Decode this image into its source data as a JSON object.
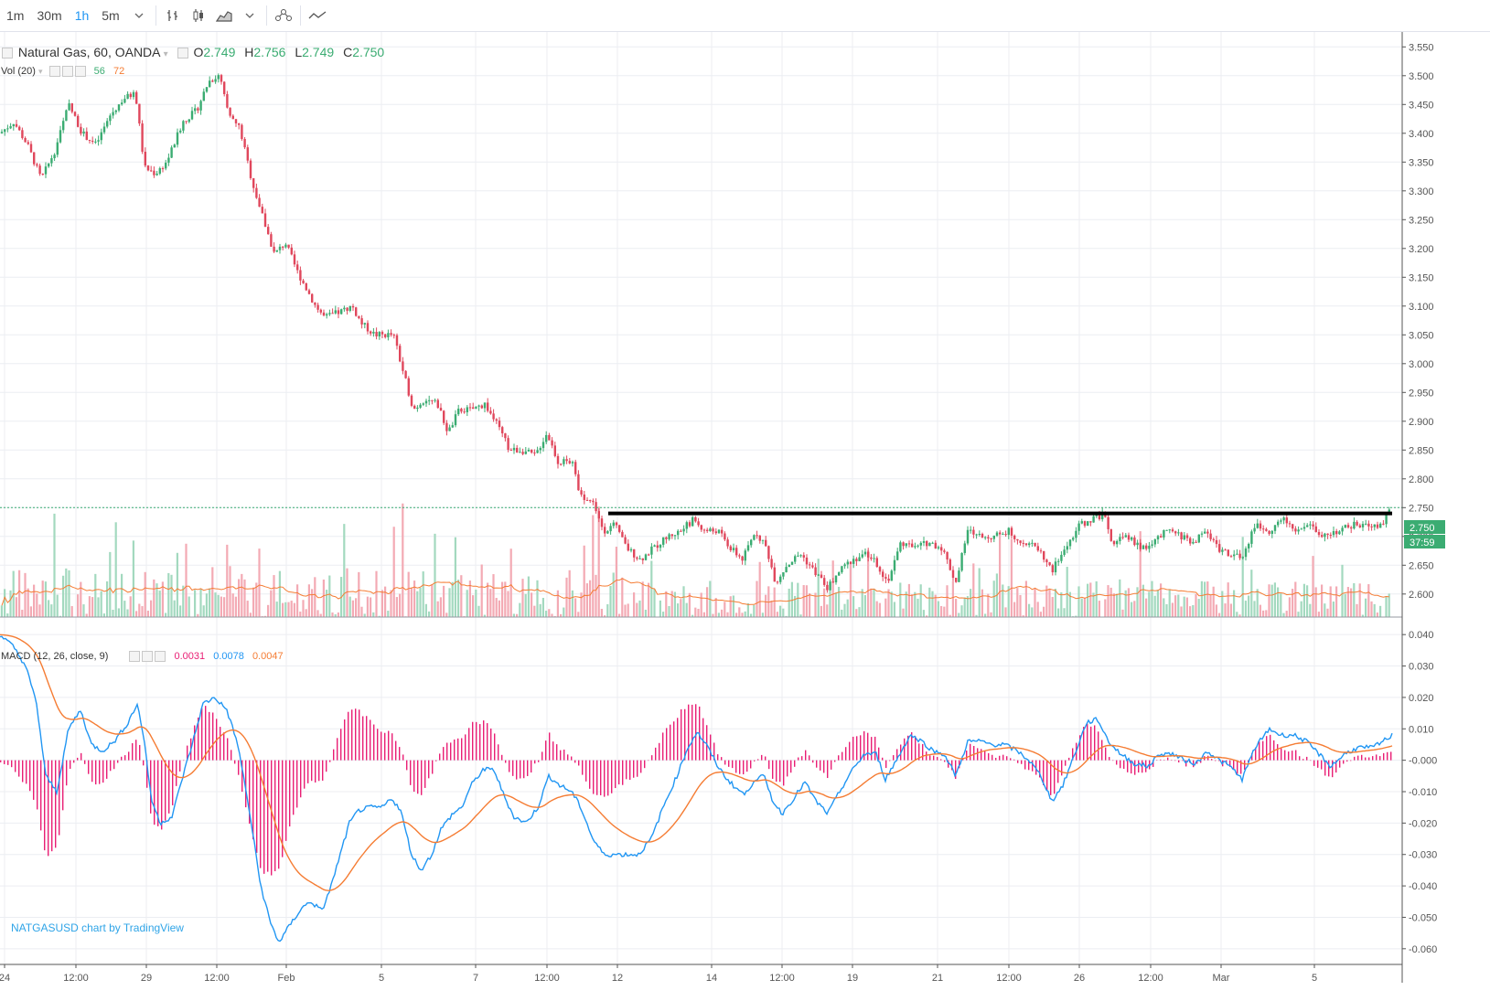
{
  "toolbar": {
    "intervals": [
      "1m",
      "30m",
      "1h",
      "5m"
    ],
    "active_interval": "1h",
    "icons": [
      "chevron-down-icon",
      "bar-chart-icon",
      "candlestick-icon",
      "area-chart-icon",
      "chevron-down-icon",
      "indicators-icon",
      "compare-line-icon"
    ]
  },
  "legend": {
    "symbol": "Natural Gas, 60, OANDA",
    "o_label": "O",
    "o_value": "2.749",
    "h_label": "H",
    "h_value": "2.756",
    "l_label": "L",
    "l_value": "2.749",
    "c_label": "C",
    "c_value": "2.750",
    "vol_label": "Vol (20)",
    "vol_value1": "56",
    "vol_value2": "72",
    "macd_label": "MACD (12, 26, close, 9)",
    "macd_hist": "0.0031",
    "macd_line": "0.0078",
    "macd_signal": "0.0047"
  },
  "price_axis": {
    "ticks": [
      "3.550",
      "3.500",
      "3.450",
      "3.400",
      "3.350",
      "3.300",
      "3.250",
      "3.200",
      "3.150",
      "3.100",
      "3.050",
      "3.000",
      "2.950",
      "2.900",
      "2.850",
      "2.800",
      "2.750",
      "2.700",
      "2.650",
      "2.600"
    ],
    "last_price": "2.750",
    "countdown": "37:59"
  },
  "macd_axis": {
    "ticks": [
      "0.040",
      "0.030",
      "0.020",
      "0.010",
      "-0.000",
      "-0.010",
      "-0.020",
      "-0.030",
      "-0.040",
      "-0.050",
      "-0.060"
    ]
  },
  "time_axis": {
    "ticks": [
      "24",
      "12:00",
      "29",
      "12:00",
      "Feb",
      "5",
      "7",
      "12:00",
      "12",
      "14",
      "12:00",
      "19",
      "21",
      "12:00",
      "26",
      "12:00",
      "Mar",
      "5"
    ]
  },
  "watermark": "NATGASUSD chart by TradingView",
  "colors": {
    "up": "#3bac72",
    "down": "#e0475c",
    "vol_up": "#a3d9bf",
    "vol_down": "#f3aab4",
    "vol_ma": "#f57c33",
    "macd_line": "#2196f3",
    "signal_line": "#f57c33",
    "hist": "#e91e74",
    "resistance": "#000000",
    "accent": "#2196f3"
  },
  "chart_data": {
    "type": "candlestick",
    "symbol": "Natural Gas, 60, OANDA",
    "ylim": [
      2.56,
      3.56
    ],
    "resistance_level": 2.74,
    "last_close": 2.75,
    "path": [
      [
        0,
        3.4
      ],
      [
        15,
        3.42
      ],
      [
        30,
        3.38
      ],
      [
        45,
        3.32
      ],
      [
        60,
        3.37
      ],
      [
        75,
        3.45
      ],
      [
        90,
        3.4
      ],
      [
        105,
        3.38
      ],
      [
        120,
        3.43
      ],
      [
        135,
        3.46
      ],
      [
        148,
        3.47
      ],
      [
        158,
        3.34
      ],
      [
        170,
        3.33
      ],
      [
        182,
        3.35
      ],
      [
        190,
        3.38
      ],
      [
        200,
        3.42
      ],
      [
        215,
        3.44
      ],
      [
        228,
        3.49
      ],
      [
        240,
        3.5
      ],
      [
        250,
        3.43
      ],
      [
        262,
        3.41
      ],
      [
        275,
        3.32
      ],
      [
        288,
        3.25
      ],
      [
        300,
        3.19
      ],
      [
        312,
        3.21
      ],
      [
        325,
        3.16
      ],
      [
        335,
        3.13
      ],
      [
        345,
        3.1
      ],
      [
        355,
        3.08
      ],
      [
        372,
        3.09
      ],
      [
        385,
        3.1
      ],
      [
        395,
        3.07
      ],
      [
        410,
        3.05
      ],
      [
        430,
        3.05
      ],
      [
        440,
        2.99
      ],
      [
        452,
        2.92
      ],
      [
        465,
        2.94
      ],
      [
        478,
        2.93
      ],
      [
        490,
        2.88
      ],
      [
        502,
        2.92
      ],
      [
        515,
        2.92
      ],
      [
        530,
        2.93
      ],
      [
        545,
        2.89
      ],
      [
        557,
        2.85
      ],
      [
        570,
        2.85
      ],
      [
        585,
        2.84
      ],
      [
        598,
        2.88
      ],
      [
        610,
        2.83
      ],
      [
        625,
        2.83
      ],
      [
        635,
        2.77
      ],
      [
        648,
        2.76
      ],
      [
        660,
        2.71
      ],
      [
        672,
        2.72
      ],
      [
        685,
        2.68
      ],
      [
        700,
        2.66
      ],
      [
        715,
        2.68
      ],
      [
        730,
        2.7
      ],
      [
        745,
        2.71
      ],
      [
        758,
        2.73
      ],
      [
        770,
        2.71
      ],
      [
        785,
        2.71
      ],
      [
        798,
        2.68
      ],
      [
        812,
        2.66
      ],
      [
        826,
        2.71
      ],
      [
        838,
        2.68
      ],
      [
        848,
        2.62
      ],
      [
        860,
        2.65
      ],
      [
        875,
        2.67
      ],
      [
        890,
        2.64
      ],
      [
        905,
        2.61
      ],
      [
        918,
        2.64
      ],
      [
        932,
        2.66
      ],
      [
        948,
        2.67
      ],
      [
        960,
        2.65
      ],
      [
        970,
        2.62
      ],
      [
        985,
        2.69
      ],
      [
        1000,
        2.68
      ],
      [
        1015,
        2.69
      ],
      [
        1030,
        2.68
      ],
      [
        1045,
        2.62
      ],
      [
        1058,
        2.71
      ],
      [
        1072,
        2.7
      ],
      [
        1088,
        2.7
      ],
      [
        1102,
        2.71
      ],
      [
        1118,
        2.69
      ],
      [
        1135,
        2.68
      ],
      [
        1150,
        2.64
      ],
      [
        1165,
        2.68
      ],
      [
        1180,
        2.72
      ],
      [
        1195,
        2.73
      ],
      [
        1208,
        2.74
      ],
      [
        1215,
        2.69
      ],
      [
        1232,
        2.7
      ],
      [
        1248,
        2.68
      ],
      [
        1262,
        2.69
      ],
      [
        1276,
        2.71
      ],
      [
        1292,
        2.7
      ],
      [
        1305,
        2.69
      ],
      [
        1318,
        2.71
      ],
      [
        1332,
        2.68
      ],
      [
        1345,
        2.67
      ],
      [
        1358,
        2.66
      ],
      [
        1372,
        2.72
      ],
      [
        1388,
        2.71
      ],
      [
        1402,
        2.73
      ],
      [
        1418,
        2.71
      ],
      [
        1432,
        2.72
      ],
      [
        1448,
        2.7
      ],
      [
        1462,
        2.71
      ],
      [
        1478,
        2.72
      ],
      [
        1495,
        2.72
      ],
      [
        1510,
        2.72
      ],
      [
        1522,
        2.75
      ]
    ],
    "macd_path": [
      [
        0,
        0.04
      ],
      [
        15,
        0.036
      ],
      [
        28,
        0.03
      ],
      [
        40,
        0.018
      ],
      [
        50,
        -0.005
      ],
      [
        62,
        -0.01
      ],
      [
        75,
        0.01
      ],
      [
        88,
        0.016
      ],
      [
        100,
        0.005
      ],
      [
        112,
        0.003
      ],
      [
        125,
        0.006
      ],
      [
        140,
        0.012
      ],
      [
        150,
        0.018
      ],
      [
        158,
        0.006
      ],
      [
        165,
        -0.012
      ],
      [
        175,
        -0.02
      ],
      [
        188,
        -0.018
      ],
      [
        200,
        -0.005
      ],
      [
        210,
        0.005
      ],
      [
        222,
        0.018
      ],
      [
        235,
        0.02
      ],
      [
        248,
        0.016
      ],
      [
        260,
        0.005
      ],
      [
        272,
        -0.015
      ],
      [
        285,
        -0.04
      ],
      [
        296,
        -0.052
      ],
      [
        305,
        -0.058
      ],
      [
        318,
        -0.052
      ],
      [
        330,
        -0.047
      ],
      [
        340,
        -0.045
      ],
      [
        352,
        -0.048
      ],
      [
        362,
        -0.04
      ],
      [
        372,
        -0.03
      ],
      [
        382,
        -0.02
      ],
      [
        392,
        -0.016
      ],
      [
        405,
        -0.015
      ],
      [
        418,
        -0.015
      ],
      [
        428,
        -0.012
      ],
      [
        438,
        -0.016
      ],
      [
        450,
        -0.03
      ],
      [
        460,
        -0.035
      ],
      [
        472,
        -0.03
      ],
      [
        482,
        -0.022
      ],
      [
        495,
        -0.017
      ],
      [
        505,
        -0.015
      ],
      [
        515,
        -0.008
      ],
      [
        528,
        -0.003
      ],
      [
        540,
        -0.003
      ],
      [
        552,
        -0.012
      ],
      [
        562,
        -0.018
      ],
      [
        575,
        -0.02
      ],
      [
        588,
        -0.015
      ],
      [
        600,
        -0.005
      ],
      [
        612,
        -0.008
      ],
      [
        625,
        -0.01
      ],
      [
        635,
        -0.015
      ],
      [
        648,
        -0.025
      ],
      [
        660,
        -0.03
      ],
      [
        672,
        -0.03
      ],
      [
        685,
        -0.03
      ],
      [
        698,
        -0.03
      ],
      [
        712,
        -0.025
      ],
      [
        725,
        -0.015
      ],
      [
        740,
        -0.005
      ],
      [
        752,
        0.004
      ],
      [
        762,
        0.009
      ],
      [
        772,
        0.005
      ],
      [
        785,
        -0.002
      ],
      [
        795,
        -0.006
      ],
      [
        805,
        -0.009
      ],
      [
        815,
        -0.011
      ],
      [
        825,
        -0.006
      ],
      [
        835,
        -0.005
      ],
      [
        845,
        -0.013
      ],
      [
        855,
        -0.017
      ],
      [
        868,
        -0.012
      ],
      [
        880,
        -0.007
      ],
      [
        892,
        -0.013
      ],
      [
        905,
        -0.017
      ],
      [
        918,
        -0.01
      ],
      [
        930,
        -0.004
      ],
      [
        945,
        0.002
      ],
      [
        958,
        0.002
      ],
      [
        968,
        -0.006
      ],
      [
        980,
        0.0
      ],
      [
        995,
        0.008
      ],
      [
        1008,
        0.006
      ],
      [
        1020,
        0.003
      ],
      [
        1032,
        0.002
      ],
      [
        1045,
        -0.005
      ],
      [
        1058,
        0.006
      ],
      [
        1072,
        0.006
      ],
      [
        1085,
        0.005
      ],
      [
        1098,
        0.005
      ],
      [
        1112,
        0.003
      ],
      [
        1125,
        0.0
      ],
      [
        1138,
        -0.005
      ],
      [
        1150,
        -0.013
      ],
      [
        1162,
        -0.008
      ],
      [
        1175,
        0.002
      ],
      [
        1188,
        0.012
      ],
      [
        1200,
        0.013
      ],
      [
        1212,
        0.006
      ],
      [
        1225,
        0.002
      ],
      [
        1240,
        -0.001
      ],
      [
        1255,
        -0.002
      ],
      [
        1268,
        0.002
      ],
      [
        1282,
        0.002
      ],
      [
        1295,
        0.0
      ],
      [
        1308,
        -0.001
      ],
      [
        1320,
        0.003
      ],
      [
        1333,
        0.0
      ],
      [
        1345,
        -0.002
      ],
      [
        1358,
        -0.006
      ],
      [
        1372,
        0.004
      ],
      [
        1388,
        0.01
      ],
      [
        1400,
        0.008
      ],
      [
        1415,
        0.008
      ],
      [
        1428,
        0.006
      ],
      [
        1442,
        0.002
      ],
      [
        1455,
        -0.002
      ],
      [
        1470,
        0.002
      ],
      [
        1485,
        0.004
      ],
      [
        1500,
        0.004
      ],
      [
        1512,
        0.006
      ],
      [
        1522,
        0.008
      ]
    ]
  }
}
